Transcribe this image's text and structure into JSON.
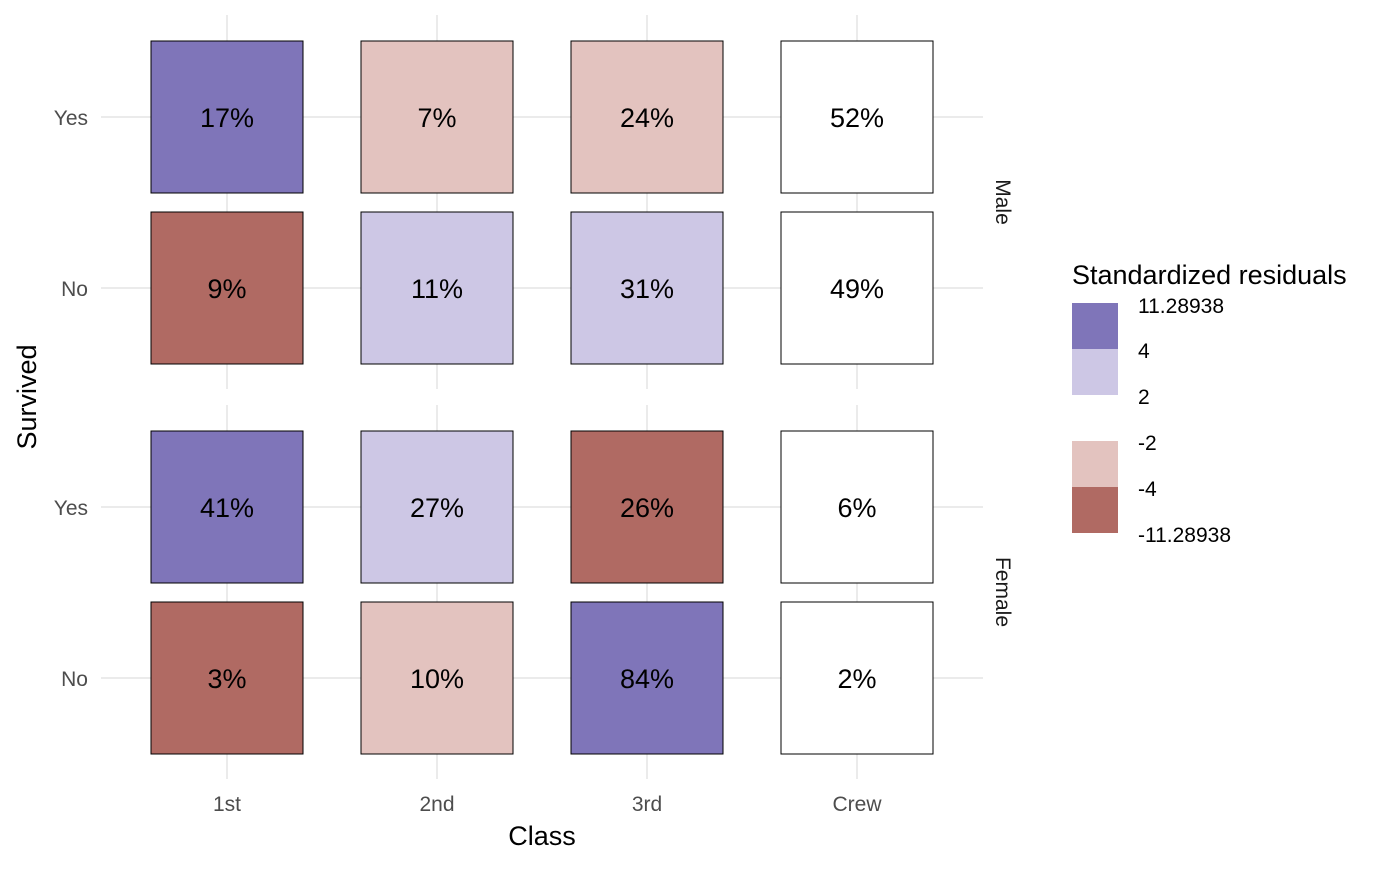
{
  "chart_data": {
    "type": "heatmap",
    "xlabel": "Class",
    "ylabel": "Survived",
    "x_categories": [
      "1st",
      "2nd",
      "3rd",
      "Crew"
    ],
    "y_categories": [
      "Yes",
      "No"
    ],
    "facets": [
      "Male",
      "Female"
    ],
    "grid": true,
    "cells": [
      {
        "facet": "Male",
        "survived": "Yes",
        "class": "1st",
        "label": "17%",
        "shade": "strong-positive"
      },
      {
        "facet": "Male",
        "survived": "Yes",
        "class": "2nd",
        "label": "7%",
        "shade": "weak-negative"
      },
      {
        "facet": "Male",
        "survived": "Yes",
        "class": "3rd",
        "label": "24%",
        "shade": "weak-negative"
      },
      {
        "facet": "Male",
        "survived": "Yes",
        "class": "Crew",
        "label": "52%",
        "shade": "neutral"
      },
      {
        "facet": "Male",
        "survived": "No",
        "class": "1st",
        "label": "9%",
        "shade": "strong-negative"
      },
      {
        "facet": "Male",
        "survived": "No",
        "class": "2nd",
        "label": "11%",
        "shade": "weak-positive"
      },
      {
        "facet": "Male",
        "survived": "No",
        "class": "3rd",
        "label": "31%",
        "shade": "weak-positive"
      },
      {
        "facet": "Male",
        "survived": "No",
        "class": "Crew",
        "label": "49%",
        "shade": "neutral"
      },
      {
        "facet": "Female",
        "survived": "Yes",
        "class": "1st",
        "label": "41%",
        "shade": "strong-positive"
      },
      {
        "facet": "Female",
        "survived": "Yes",
        "class": "2nd",
        "label": "27%",
        "shade": "weak-positive"
      },
      {
        "facet": "Female",
        "survived": "Yes",
        "class": "3rd",
        "label": "26%",
        "shade": "strong-negative"
      },
      {
        "facet": "Female",
        "survived": "Yes",
        "class": "Crew",
        "label": "6%",
        "shade": "neutral"
      },
      {
        "facet": "Female",
        "survived": "No",
        "class": "1st",
        "label": "3%",
        "shade": "strong-negative"
      },
      {
        "facet": "Female",
        "survived": "No",
        "class": "2nd",
        "label": "10%",
        "shade": "weak-negative"
      },
      {
        "facet": "Female",
        "survived": "No",
        "class": "3rd",
        "label": "84%",
        "shade": "strong-positive"
      },
      {
        "facet": "Female",
        "survived": "No",
        "class": "Crew",
        "label": "2%",
        "shade": "neutral"
      }
    ],
    "shade_colors": {
      "strong-positive": "#7f75b9",
      "weak-positive": "#cdc7e5",
      "neutral": "#ffffff",
      "weak-negative": "#e3c3bf",
      "strong-negative": "#b06a63"
    },
    "legend": {
      "title": "Standardized residuals",
      "placement": "right",
      "swatches": [
        {
          "shade": "strong-positive"
        },
        {
          "shade": "weak-positive"
        },
        {
          "shade": "neutral"
        },
        {
          "shade": "weak-negative"
        },
        {
          "shade": "strong-negative"
        }
      ],
      "breaks": [
        "11.28938",
        "4",
        "2",
        "-2",
        "-4",
        "-11.28938"
      ]
    }
  }
}
